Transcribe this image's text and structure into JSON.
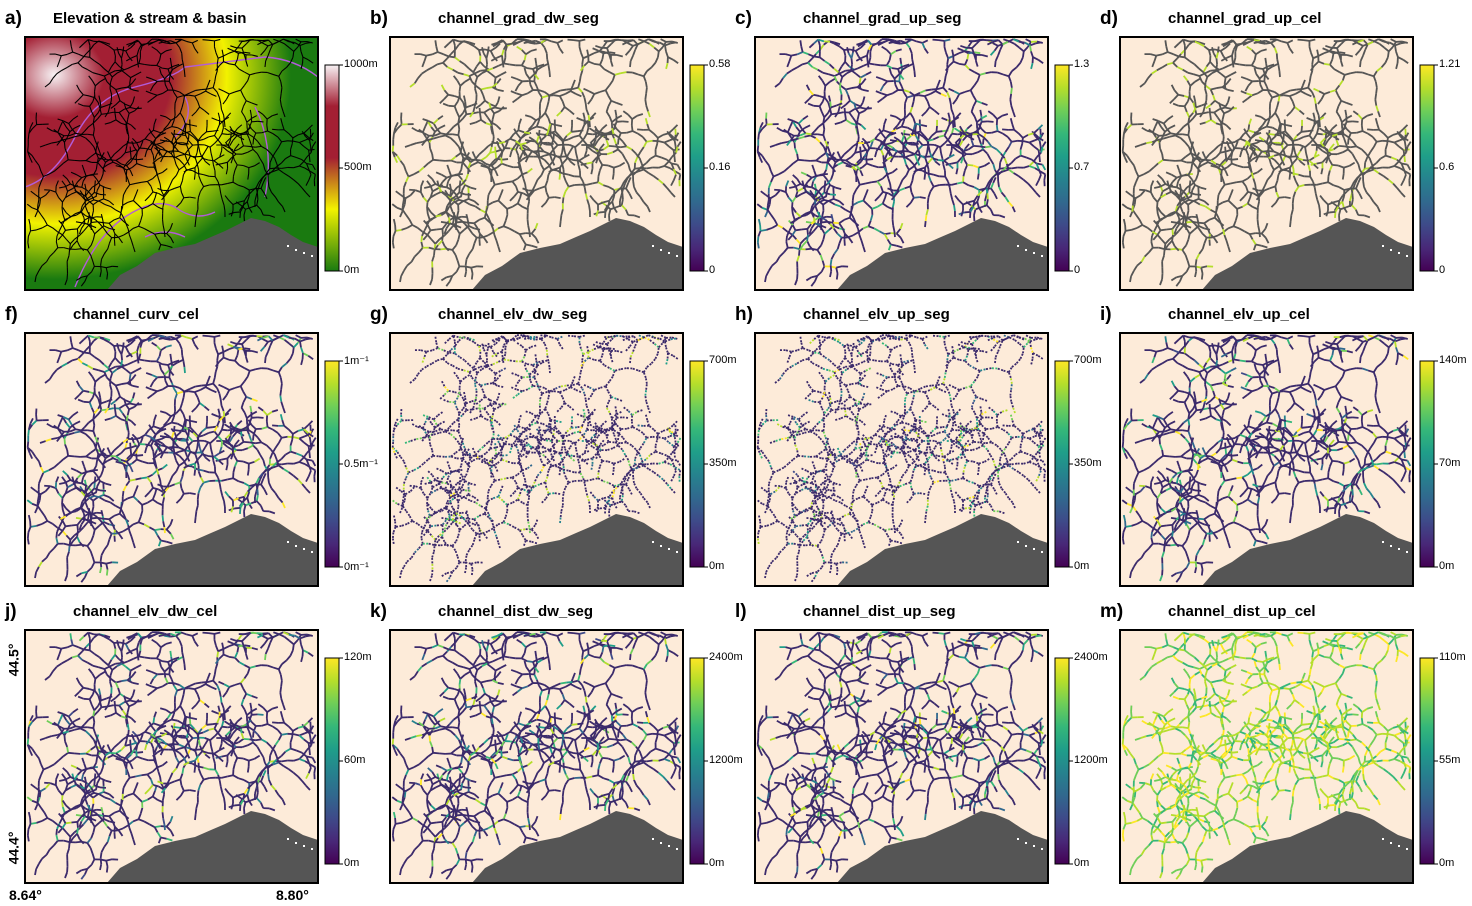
{
  "colors": {
    "background": "#fdebd9",
    "sea": "#555555",
    "stream_dark": "#3b2a6b",
    "basin_line": "#b25cd9",
    "terrain_low": "#1a7a10",
    "terrain_mid": "#f2f200",
    "terrain_high": "#a31f33",
    "terrain_peak": "#f7f2f4"
  },
  "axes": {
    "lat_top": "44.5°",
    "lat_bottom": "44.4°",
    "lon_left": "8.64°",
    "lon_right": "8.80°"
  },
  "chart_data": [
    {
      "label": "a)",
      "title": "Elevation & stream & basin",
      "type": "heatmap",
      "colormap": "terrain",
      "ticks": [
        "1000m",
        "500m",
        "0m"
      ],
      "range": [
        0,
        1000
      ]
    },
    {
      "label": "b)",
      "title": "channel_grad_dw_seg",
      "type": "heatmap",
      "colormap": "viridis",
      "ticks": [
        "0.58",
        "0.16",
        "0"
      ],
      "range": [
        0,
        0.58
      ]
    },
    {
      "label": "c)",
      "title": "channel_grad_up_seg",
      "type": "heatmap",
      "colormap": "viridis",
      "ticks": [
        "1.3",
        "0.7",
        "0"
      ],
      "range": [
        0,
        1.3
      ]
    },
    {
      "label": "d)",
      "title": "channel_grad_up_cel",
      "type": "heatmap",
      "colormap": "viridis",
      "ticks": [
        "1.21",
        "0.6",
        "0"
      ],
      "range": [
        0,
        1.21
      ]
    },
    {
      "label": "f)",
      "title": "channel_curv_cel",
      "type": "heatmap",
      "colormap": "viridis",
      "ticks": [
        "1m⁻¹",
        "0.5m⁻¹",
        "0m⁻¹"
      ],
      "range": [
        0,
        1
      ]
    },
    {
      "label": "g)",
      "title": "channel_elv_dw_seg",
      "type": "heatmap",
      "colormap": "viridis",
      "ticks": [
        "700m",
        "350m",
        "0m"
      ],
      "range": [
        0,
        700
      ]
    },
    {
      "label": "h)",
      "title": "channel_elv_up_seg",
      "type": "heatmap",
      "colormap": "viridis",
      "ticks": [
        "700m",
        "350m",
        "0m"
      ],
      "range": [
        0,
        700
      ]
    },
    {
      "label": "i)",
      "title": "channel_elv_up_cel",
      "type": "heatmap",
      "colormap": "viridis",
      "ticks": [
        "140m",
        "70m",
        "0m"
      ],
      "range": [
        0,
        140
      ]
    },
    {
      "label": "j)",
      "title": "channel_elv_dw_cel",
      "type": "heatmap",
      "colormap": "viridis",
      "ticks": [
        "120m",
        "60m",
        "0m"
      ],
      "range": [
        0,
        120
      ]
    },
    {
      "label": "k)",
      "title": "channel_dist_dw_seg",
      "type": "heatmap",
      "colormap": "viridis",
      "ticks": [
        "2400m",
        "1200m",
        "0m"
      ],
      "range": [
        0,
        2400
      ]
    },
    {
      "label": "l)",
      "title": "channel_dist_up_seg",
      "type": "heatmap",
      "colormap": "viridis",
      "ticks": [
        "2400m",
        "1200m",
        "0m"
      ],
      "range": [
        0,
        2400
      ]
    },
    {
      "label": "m)",
      "title": "channel_dist_up_cel",
      "type": "heatmap",
      "colormap": "viridis",
      "ticks": [
        "110m",
        "55m",
        "0m"
      ],
      "range": [
        0,
        110
      ]
    }
  ]
}
